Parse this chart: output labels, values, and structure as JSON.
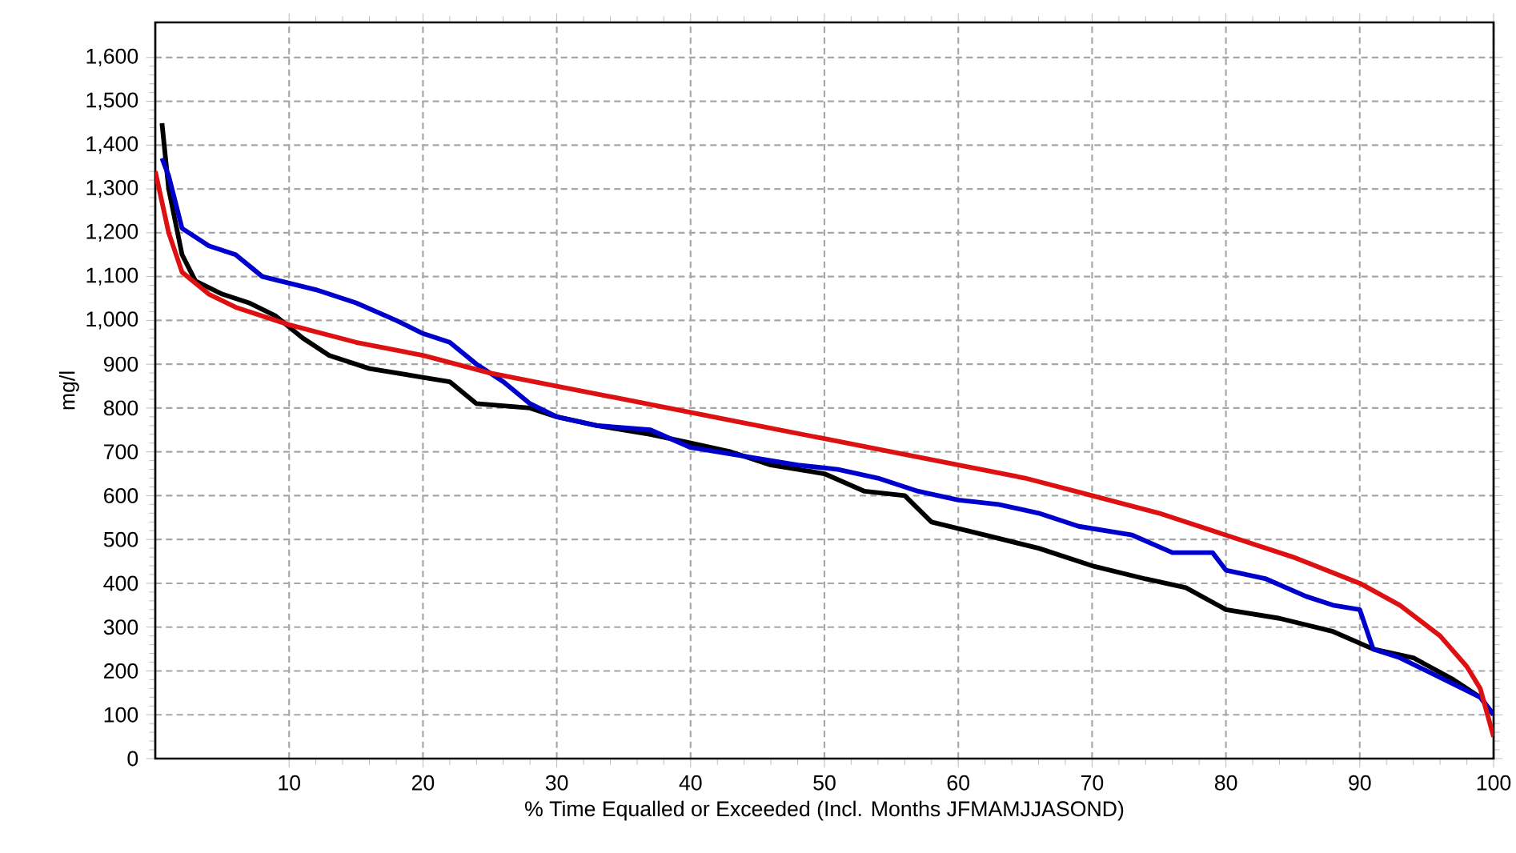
{
  "chart_data": {
    "type": "line",
    "xlabel": "% Time Equalled or Exceeded (Incl. Months JFMAMJJASOND)",
    "ylabel": "mg/l",
    "xlim": [
      0,
      100
    ],
    "ylim": [
      0,
      1680
    ],
    "xticks": [
      10,
      20,
      30,
      40,
      50,
      60,
      70,
      80,
      90,
      100
    ],
    "yticks": [
      0,
      100,
      200,
      300,
      400,
      500,
      600,
      700,
      800,
      900,
      {
        "value": 1000,
        "label": "1,000"
      },
      {
        "value": 1100,
        "label": "1,100"
      },
      {
        "value": 1200,
        "label": "1,200"
      },
      {
        "value": 1300,
        "label": "1,300"
      },
      {
        "value": 1400,
        "label": "1,400"
      },
      {
        "value": 1500,
        "label": "1,500"
      },
      {
        "value": 1600,
        "label": "1,600"
      }
    ],
    "grid": true,
    "line_style": "solid",
    "series": [
      {
        "color": "#000000",
        "x": [
          0.5,
          1,
          2,
          3,
          5,
          7,
          9,
          11,
          13,
          16,
          20,
          22,
          24,
          28,
          30,
          33,
          37,
          40,
          43,
          46,
          50,
          53,
          56,
          58,
          62,
          66,
          70,
          74,
          77,
          80,
          84,
          88,
          91,
          94,
          97,
          99,
          100
        ],
        "values": [
          1450,
          1300,
          1150,
          1090,
          1060,
          1040,
          1010,
          960,
          920,
          890,
          870,
          860,
          810,
          800,
          780,
          760,
          740,
          720,
          700,
          670,
          650,
          610,
          600,
          540,
          510,
          480,
          440,
          410,
          390,
          340,
          320,
          290,
          250,
          230,
          180,
          140,
          100
        ]
      },
      {
        "color": "#0000cc",
        "x": [
          0.5,
          1,
          2,
          4,
          6,
          8,
          12,
          15,
          18,
          20,
          22,
          24,
          26,
          28,
          30,
          33,
          37,
          40,
          44,
          48,
          51,
          54,
          57,
          60,
          63,
          66,
          69,
          73,
          76,
          79,
          80,
          83,
          86,
          88,
          90,
          91,
          93,
          95,
          97,
          99,
          100
        ],
        "values": [
          1370,
          1330,
          1210,
          1170,
          1150,
          1100,
          1070,
          1040,
          1000,
          970,
          950,
          900,
          860,
          810,
          780,
          760,
          750,
          710,
          690,
          670,
          660,
          640,
          610,
          590,
          580,
          560,
          530,
          510,
          470,
          470,
          430,
          410,
          370,
          350,
          340,
          250,
          230,
          200,
          170,
          140,
          100
        ]
      },
      {
        "color": "#dd1111",
        "x": [
          0,
          1,
          2,
          4,
          6,
          10,
          15,
          20,
          25,
          30,
          35,
          40,
          45,
          50,
          55,
          60,
          65,
          70,
          75,
          80,
          85,
          90,
          93,
          96,
          98,
          99,
          100
        ],
        "values": [
          1340,
          1200,
          1110,
          1060,
          1030,
          990,
          950,
          920,
          880,
          850,
          820,
          790,
          760,
          730,
          700,
          670,
          640,
          600,
          560,
          510,
          460,
          400,
          350,
          280,
          210,
          160,
          50
        ]
      }
    ]
  }
}
